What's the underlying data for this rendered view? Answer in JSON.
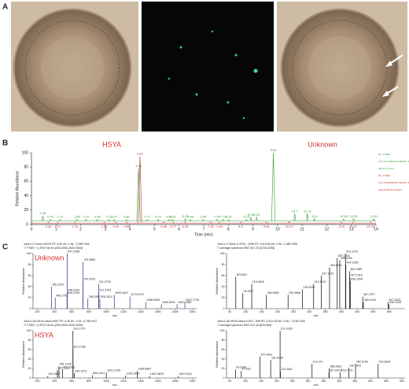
{
  "panels": {
    "a": "A",
    "b": "B",
    "c": "C"
  },
  "chromatogram": {
    "label_hsya": "HSYA",
    "label_unknown": "Unknown",
    "xlabel": "Time (min)",
    "ylabel": "Relative Abundance",
    "xlim": [
      0,
      14
    ],
    "xticks": [
      0,
      1,
      2,
      3,
      4,
      5,
      6,
      7,
      8,
      9,
      10,
      11,
      12,
      13,
      14
    ],
    "ylim": [
      0,
      100
    ],
    "yticks": [
      0,
      20,
      40,
      60,
      80,
      100
    ],
    "legend": [
      "NL: 1.05E9",
      "m/z= 612.5000-613.5000 F: MS",
      "Jan13-17-6min",
      "NL: 2.00E8",
      "m/z= 546.5000-547.5000 F: MS",
      "Jan13-18-HSYA-stand"
    ],
    "traces": [
      {
        "color": "#2e9e2e",
        "baseline": 5,
        "x": [
          0.46,
          0.76,
          1.17,
          1.85,
          2.22,
          2.68,
          3.15,
          3.37,
          3.86,
          4.35,
          4.71,
          5.14,
          5.59,
          5.73,
          6.25,
          6.46,
          6.98,
          7.54,
          7.79,
          8.02,
          8.74,
          8.92,
          9.15,
          9.83,
          10.7,
          11.21,
          11.5,
          12.69,
          13.09,
          13.91
        ],
        "y": [
          12,
          7,
          7,
          7,
          7,
          7,
          7,
          7,
          7,
          78,
          7,
          7,
          7,
          7,
          8,
          7,
          7,
          7,
          7,
          7,
          7,
          10,
          10,
          100,
          15,
          15,
          8,
          8,
          8,
          8
        ]
      },
      {
        "color": "#c62828",
        "baseline": 2,
        "x": [
          0.69,
          1.07,
          1.76,
          2.96,
          3.43,
          3.88,
          4.41,
          5.38,
          5.77,
          6.25,
          7.28,
          7.64,
          8.5,
          9.55,
          10.47,
          12.6,
          13.07,
          13.78
        ],
        "y": [
          3,
          3,
          3,
          3,
          3,
          3,
          95,
          3,
          3,
          3,
          3,
          3,
          3,
          3,
          4,
          3,
          3,
          3
        ]
      }
    ]
  },
  "spectra": [
    {
      "header": [
        "Jan13-17-6min #2220 RT: 9.82 AV: 1 NL: 1.29E+008",
        "T: FTMS + p ESI Full ms [200.0000-2000.0000]"
      ],
      "tag": "Unknown",
      "xlim": [
        150,
        2050
      ],
      "xticks": [
        200,
        400,
        600,
        800,
        1000,
        1200,
        1400,
        1600,
        1800,
        2000
      ],
      "mz": [
        365.1529,
        408.1759,
        545.2109,
        547.2268,
        548.2302,
        729.2889,
        730.3022,
        786.3387,
        911.3718,
        912.3753,
        926.2624,
        1093.4447,
        1275.5172,
        1458.5936,
        1640.6941,
        1822.7385,
        1913.7716
      ],
      "h": [
        40,
        20,
        25,
        100,
        30,
        85,
        50,
        18,
        45,
        30,
        18,
        25,
        22,
        12,
        8,
        8,
        12
      ]
    },
    {
      "header": [
        "Jan13-17-6min # 2210 - 2255 RT: 9.8-9.84 AV: 2 NL: 1.38E+005",
        "T: Average spectrum MS2 547.23 [2210-2255]"
      ],
      "xlim": [
        40,
        600
      ],
      "xticks": [
        50,
        100,
        150,
        200,
        250,
        300,
        350,
        400,
        450,
        500,
        550
      ],
      "mz": [
        69.0343,
        91.0547,
        119.0848,
        165.0656,
        233.0668,
        278.0931,
        313.1015,
        337.1018,
        363.1153,
        387.1193,
        395.1259,
        413.1314,
        414.1389,
        426.1385,
        427.1416,
        428.1594,
        467.1577,
        469.1044,
        547.2243,
        549.2316
      ],
      "h": [
        58,
        28,
        45,
        25,
        25,
        35,
        45,
        60,
        75,
        92,
        88,
        100,
        80,
        68,
        57,
        50,
        22,
        12,
        12,
        8
      ]
    },
    {
      "header": [
        "Jan13-18-HSYA-stand #657 RT: 4.40 AV: 1 NL: 6.79E+007",
        "T: FTMS + p ESI Full ms [200.0000-2000.0000]"
      ],
      "tag": "HSYA",
      "xlim": [
        150,
        2050
      ],
      "xticks": [
        200,
        400,
        600,
        800,
        1000,
        1200,
        1400,
        1600,
        1800,
        2000
      ],
      "mz": [
        321.0667,
        433.1124,
        451.1225,
        492.1262,
        613.1757,
        614.1786,
        630.1572,
        838.2241,
        1001.2785,
        1225.3444,
        1359.6887,
        1501.9876,
        1837.5111
      ],
      "h": [
        4,
        17,
        25,
        18,
        100,
        62,
        10,
        6,
        12,
        5,
        15,
        4,
        4
      ]
    },
    {
      "header": [
        "Jan13-18-HSYA-stand # 620 - 695 RT: 4.33-4.50 AV: 5 NL: 7.51E+005",
        "T: Average spectrum MS2 613.16 [620-695]"
      ],
      "xlim": [
        40,
        610
      ],
      "xticks": [
        50,
        100,
        150,
        200,
        250,
        300,
        350,
        400,
        450,
        500,
        550,
        600
      ],
      "mz": [
        69.0343,
        87.039,
        147.0441,
        181.0134,
        211.0339,
        212.0367,
        313.071,
        367.0471,
        368.0693,
        403.0776,
        430.7922,
        452.0784,
        523.9634
      ],
      "h": [
        18,
        15,
        45,
        38,
        100,
        14,
        30,
        12,
        20,
        12,
        22,
        30,
        30
      ]
    }
  ],
  "spectrum_axes": {
    "ylabel": "Relative Abundance",
    "xlabel": "m/z",
    "ylim": [
      0,
      100
    ],
    "yticks": [
      0,
      20,
      40,
      60,
      80,
      100
    ]
  }
}
